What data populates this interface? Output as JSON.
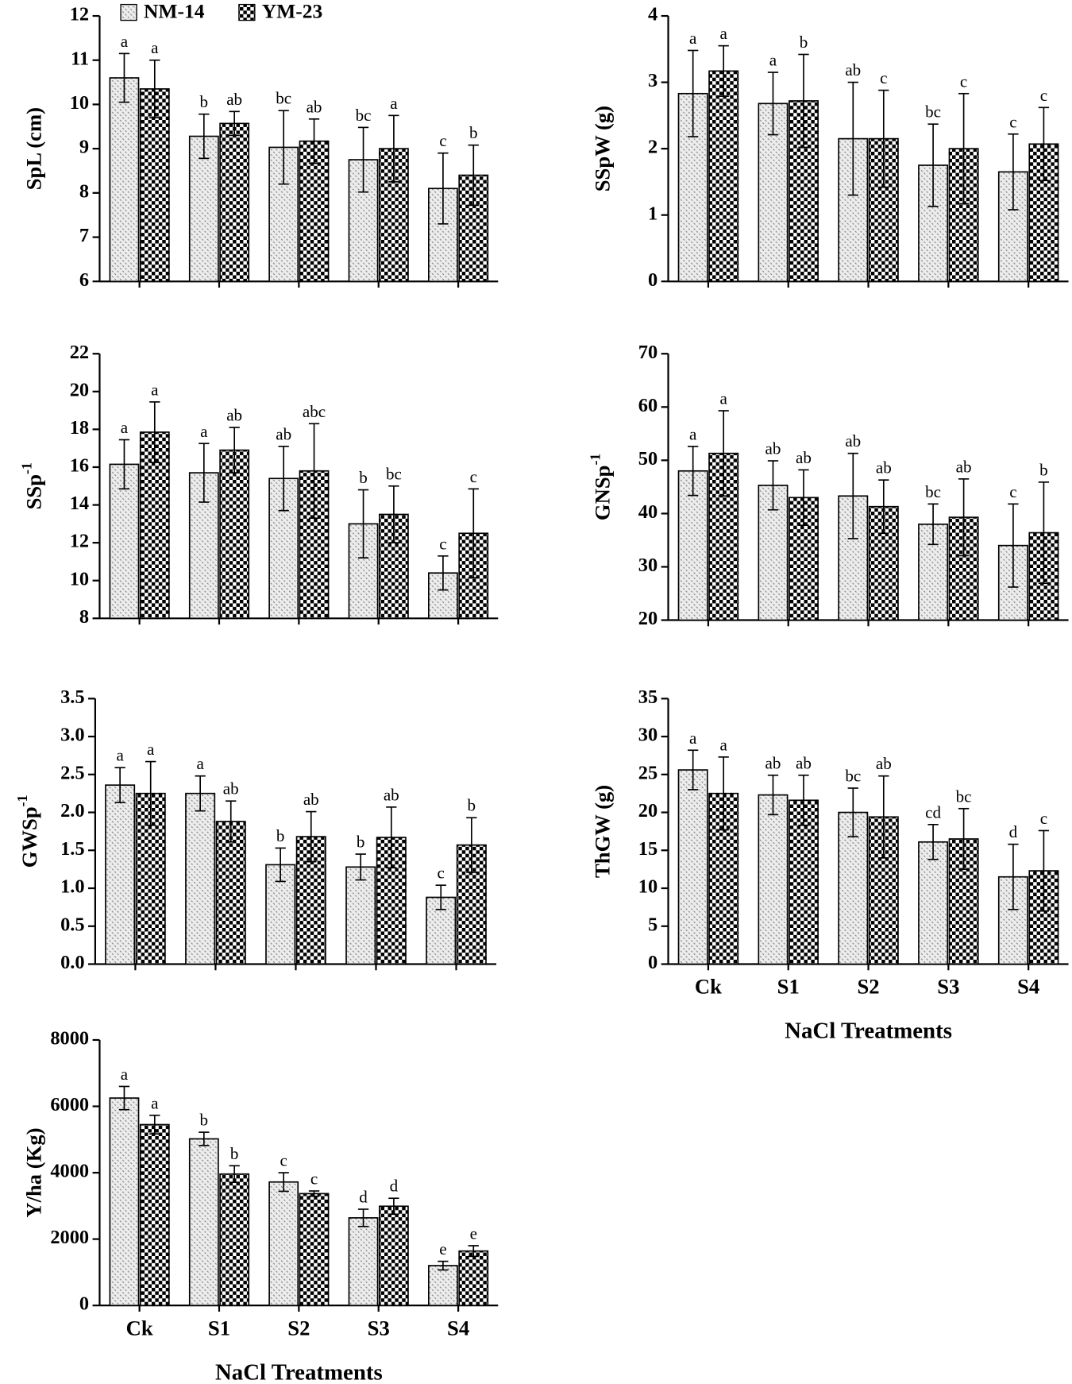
{
  "chart_data": [
    {
      "type": "bar",
      "ylabel": "SpL (cm)",
      "ylim": [
        6,
        12
      ],
      "yticks": [
        6,
        7,
        8,
        9,
        10,
        11,
        12
      ],
      "categories": [
        null,
        null,
        null,
        null,
        null
      ],
      "series": [
        {
          "name": "NM-14",
          "pattern": "dots",
          "values": [
            10.6,
            9.28,
            9.03,
            8.75,
            8.1
          ],
          "errors": [
            0.55,
            0.5,
            0.83,
            0.73,
            0.8
          ],
          "labels": [
            "a",
            "b",
            "bc",
            "bc",
            "c"
          ]
        },
        {
          "name": "YM-23",
          "pattern": "checker",
          "values": [
            10.35,
            9.57,
            9.17,
            9.0,
            8.4
          ],
          "errors": [
            0.65,
            0.27,
            0.5,
            0.75,
            0.68
          ],
          "labels": [
            "a",
            "ab",
            "ab",
            "a",
            "b"
          ]
        }
      ]
    },
    {
      "type": "bar",
      "ylabel": "SSpW (g)",
      "ylim": [
        0,
        4
      ],
      "yticks": [
        0,
        1,
        2,
        3,
        4
      ],
      "categories": [
        null,
        null,
        null,
        null,
        null
      ],
      "series": [
        {
          "pattern": "dots",
          "values": [
            2.83,
            2.68,
            2.15,
            1.75,
            1.65
          ],
          "errors": [
            0.65,
            0.47,
            0.85,
            0.62,
            0.57
          ],
          "labels": [
            "a",
            "a",
            "ab",
            "bc",
            "c"
          ]
        },
        {
          "pattern": "checker",
          "values": [
            3.17,
            2.72,
            2.15,
            2.0,
            2.07
          ],
          "errors": [
            0.38,
            0.7,
            0.73,
            0.83,
            0.55
          ],
          "labels": [
            "a",
            "b",
            "c",
            "c",
            "c"
          ]
        }
      ]
    },
    {
      "type": "bar",
      "ylabel": "SSp",
      "ylabel_sup": "-1",
      "ylim": [
        8,
        22
      ],
      "yticks": [
        8,
        10,
        12,
        14,
        16,
        18,
        20,
        22
      ],
      "categories": [
        null,
        null,
        null,
        null,
        null
      ],
      "series": [
        {
          "pattern": "dots",
          "values": [
            16.15,
            15.7,
            15.4,
            13.0,
            10.4
          ],
          "errors": [
            1.3,
            1.55,
            1.7,
            1.8,
            0.9
          ],
          "labels": [
            "a",
            "a",
            "ab",
            "b",
            "c"
          ]
        },
        {
          "pattern": "checker",
          "values": [
            17.85,
            16.9,
            15.8,
            13.5,
            12.5
          ],
          "errors": [
            1.6,
            1.2,
            2.5,
            1.5,
            2.35
          ],
          "labels": [
            "a",
            "ab",
            "abc",
            "bc",
            "c"
          ]
        }
      ]
    },
    {
      "type": "bar",
      "ylabel": "GNSp",
      "ylabel_sup": "-1",
      "ylim": [
        20,
        70
      ],
      "yticks": [
        20,
        30,
        40,
        50,
        60,
        70
      ],
      "categories": [
        null,
        null,
        null,
        null,
        null
      ],
      "series": [
        {
          "pattern": "dots",
          "values": [
            48,
            45.3,
            43.3,
            38,
            34
          ],
          "errors": [
            4.6,
            4.6,
            8,
            3.8,
            7.8
          ],
          "labels": [
            "a",
            "ab",
            "ab",
            "bc",
            "c"
          ]
        },
        {
          "pattern": "checker",
          "values": [
            51.3,
            43.0,
            41.3,
            39.3,
            36.4
          ],
          "errors": [
            8,
            5.2,
            5,
            7.2,
            9.5
          ],
          "labels": [
            "a",
            "ab",
            "ab",
            "ab",
            "b"
          ]
        }
      ]
    },
    {
      "type": "bar",
      "ylabel": "GWSp",
      "ylabel_sup": "-1",
      "ylim": [
        0,
        3.5
      ],
      "yticks": [
        {
          "value": 0,
          "label": "0.0"
        },
        0.5,
        {
          "value": 1,
          "label": "1.0"
        },
        1.5,
        {
          "value": 2,
          "label": "2.0"
        },
        2.5,
        {
          "value": 3,
          "label": "3.0"
        },
        3.5
      ],
      "categories": [
        null,
        null,
        null,
        null,
        null
      ],
      "series": [
        {
          "pattern": "dots",
          "values": [
            2.36,
            2.25,
            1.31,
            1.28,
            0.88
          ],
          "errors": [
            0.23,
            0.23,
            0.22,
            0.17,
            0.16
          ],
          "labels": [
            "a",
            "a",
            "b",
            "b",
            "c"
          ]
        },
        {
          "pattern": "checker",
          "values": [
            2.25,
            1.88,
            1.68,
            1.67,
            1.57
          ],
          "errors": [
            0.42,
            0.27,
            0.33,
            0.4,
            0.36
          ],
          "labels": [
            "a",
            "ab",
            "ab",
            "ab",
            "b"
          ]
        }
      ]
    },
    {
      "type": "bar",
      "ylabel": "ThGW (g)",
      "xlabel": "NaCl Treatments",
      "ylim": [
        0,
        35
      ],
      "yticks": [
        0,
        5,
        10,
        15,
        20,
        25,
        30,
        35
      ],
      "categories": [
        "Ck",
        "S1",
        "S2",
        "S3",
        "S4"
      ],
      "series": [
        {
          "pattern": "dots",
          "values": [
            25.6,
            22.3,
            20,
            16.1,
            11.5
          ],
          "errors": [
            2.6,
            2.6,
            3.2,
            2.3,
            4.3
          ],
          "labels": [
            "a",
            "ab",
            "bc",
            "cd",
            "d"
          ]
        },
        {
          "pattern": "checker",
          "values": [
            22.5,
            21.6,
            19.4,
            16.5,
            12.3
          ],
          "errors": [
            4.8,
            3.3,
            5.4,
            4,
            5.3
          ],
          "labels": [
            "a",
            "ab",
            "ab",
            "bc",
            "c"
          ]
        }
      ]
    },
    {
      "type": "bar",
      "ylabel": "Y/ha (Kg)",
      "xlabel": "NaCl Treatments",
      "ylim": [
        0,
        8000
      ],
      "yticks": [
        0,
        2000,
        4000,
        6000,
        8000
      ],
      "categories": [
        "Ck",
        "S1",
        "S2",
        "S3",
        "S4"
      ],
      "series": [
        {
          "pattern": "dots",
          "values": [
            6250,
            5020,
            3720,
            2640,
            1200
          ],
          "errors": [
            350,
            200,
            280,
            260,
            130
          ],
          "labels": [
            "a",
            "b",
            "c",
            "d",
            "e"
          ]
        },
        {
          "pattern": "checker",
          "values": [
            5450,
            3960,
            3370,
            2990,
            1640
          ],
          "errors": [
            280,
            250,
            80,
            240,
            160
          ],
          "labels": [
            "a",
            "b",
            "c",
            "d",
            "e"
          ]
        }
      ]
    }
  ]
}
